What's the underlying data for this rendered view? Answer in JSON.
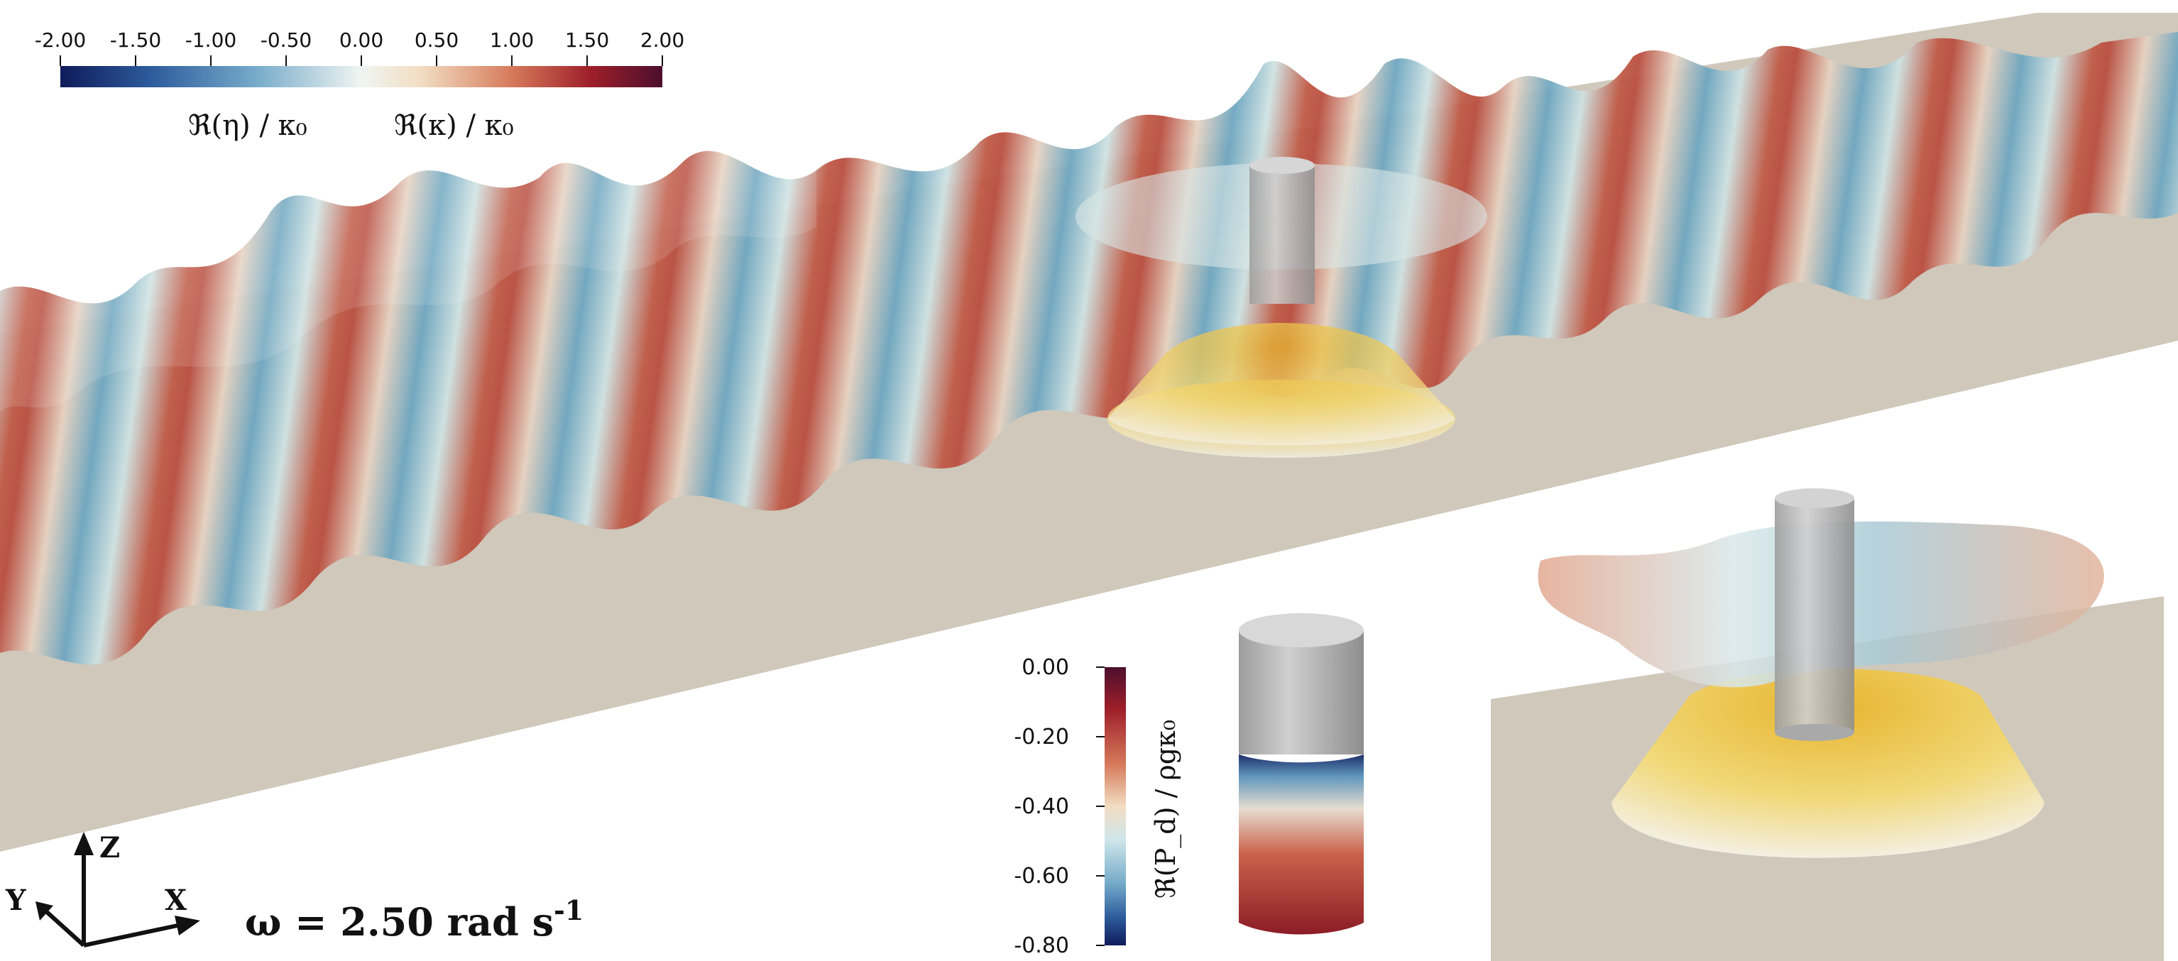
{
  "colorbar_top": {
    "ticks": [
      "-2.00",
      "-1.50",
      "-1.00",
      "-0.50",
      "0.00",
      "0.50",
      "1.00",
      "1.50",
      "2.00"
    ],
    "label_left": "ℜ(η) / κ₀",
    "label_right": "ℜ(κ) / κ₀",
    "colors": [
      "#0f1b5a",
      "#2d5b9c",
      "#73a9c9",
      "#e9f3f2",
      "#f2ddc2",
      "#d67a5b",
      "#9e1f2a",
      "#4d0f2d"
    ]
  },
  "colorbar_pressure": {
    "ticks": [
      "0.00",
      "-0.20",
      "-0.40",
      "-0.60",
      "-0.80"
    ],
    "label": "ℜ(P_d) / ρgκ₀"
  },
  "axes_triad": {
    "z": "Z",
    "y": "Y",
    "x": "X"
  },
  "omega_label": {
    "text": "ω = 2.50 rad s",
    "exponent": "-1"
  },
  "colors": {
    "floor": "#cfc8bb",
    "cylinder": "#bdbdbd",
    "pressure_bulb": "#e9c145"
  }
}
